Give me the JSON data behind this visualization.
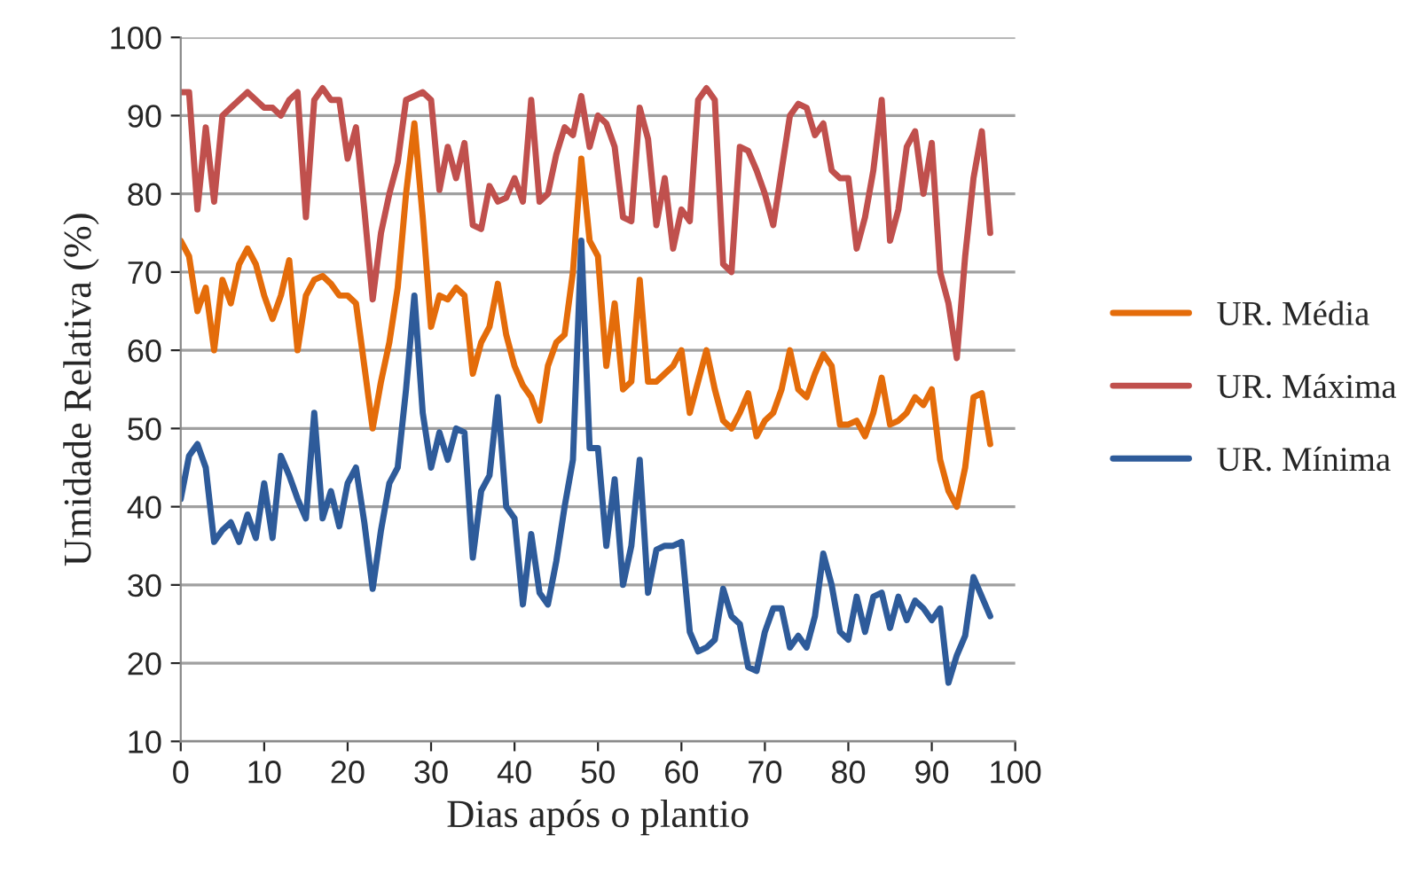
{
  "chart_data": {
    "type": "line",
    "xlabel": "Dias após o plantio",
    "ylabel": "Umidade Relativa (%)",
    "x": [
      0,
      1,
      2,
      3,
      4,
      5,
      6,
      7,
      8,
      9,
      10,
      11,
      12,
      13,
      14,
      15,
      16,
      17,
      18,
      19,
      20,
      21,
      22,
      23,
      24,
      25,
      26,
      27,
      28,
      29,
      30,
      31,
      32,
      33,
      34,
      35,
      36,
      37,
      38,
      39,
      40,
      41,
      42,
      43,
      44,
      45,
      46,
      47,
      48,
      49,
      50,
      51,
      52,
      53,
      54,
      55,
      56,
      57,
      58,
      59,
      60,
      61,
      62,
      63,
      64,
      65,
      66,
      67,
      68,
      69,
      70,
      71,
      72,
      73,
      74,
      75,
      76,
      77,
      78,
      79,
      80,
      81,
      82,
      83,
      84,
      85,
      86,
      87,
      88,
      89,
      90,
      91,
      92,
      93,
      94,
      95,
      96,
      97
    ],
    "series": [
      {
        "name": "UR. Média",
        "color": "#e46c0a",
        "values": [
          74,
          72,
          65,
          68,
          60,
          69,
          66,
          71,
          73,
          71,
          67,
          64,
          67,
          71.5,
          60,
          67,
          69,
          69.5,
          68.5,
          67,
          67,
          66,
          58,
          50,
          56,
          61,
          68,
          80,
          89,
          77,
          63,
          67,
          66.5,
          68,
          67,
          57,
          61,
          63,
          68.5,
          62,
          58,
          55.5,
          54,
          51,
          58,
          61,
          62,
          70,
          84.5,
          74,
          72,
          58,
          66,
          55,
          56,
          69,
          56,
          56,
          57,
          58,
          60,
          52,
          56,
          60,
          55,
          51,
          50,
          52,
          54.5,
          49,
          51,
          52,
          55,
          60,
          55,
          54,
          57,
          59.5,
          58,
          50.5,
          50.5,
          51,
          49,
          52,
          56.5,
          50.5,
          51,
          52,
          54,
          53,
          55,
          46,
          42,
          40,
          45,
          54,
          54.5,
          48
        ]
      },
      {
        "name": "UR. Máxima",
        "color": "#c0504d",
        "values": [
          93,
          93,
          78,
          88.5,
          79,
          90,
          91,
          92,
          93,
          92,
          91,
          91,
          90,
          92,
          93,
          77,
          92,
          93.5,
          92,
          92,
          84.5,
          88.5,
          78,
          66.5,
          75,
          80,
          84,
          92,
          92.5,
          93,
          92,
          80.5,
          86,
          82,
          86.5,
          76,
          75.5,
          81,
          79,
          79.5,
          82,
          79,
          92,
          79,
          80,
          85,
          88.5,
          87.5,
          92.5,
          86,
          90,
          89,
          86,
          77,
          76.5,
          91,
          87,
          76,
          82,
          73,
          78,
          76.5,
          92,
          93.5,
          92,
          71,
          70,
          86,
          85.5,
          83,
          80,
          76,
          83,
          90,
          91.5,
          91,
          87.5,
          89,
          83,
          82,
          82,
          73,
          77,
          83,
          92,
          74,
          78,
          86,
          88,
          80,
          86.5,
          70,
          66,
          59,
          72,
          82,
          88,
          75
        ]
      },
      {
        "name": "UR. Mínima",
        "color": "#2e5b9a",
        "values": [
          41,
          46.5,
          48,
          45,
          35.5,
          37,
          38,
          35.5,
          39,
          36,
          43,
          36,
          46.5,
          44,
          41,
          38.5,
          52,
          38.5,
          42,
          37.5,
          43,
          45,
          38,
          29.5,
          37,
          43,
          45,
          55,
          67,
          52,
          45,
          49.5,
          46,
          50,
          49.5,
          33.5,
          42,
          44,
          54,
          40,
          38.5,
          27.5,
          36.5,
          29,
          27.5,
          33,
          40,
          46,
          74,
          47.5,
          47.5,
          35,
          43.5,
          30,
          35,
          46,
          29,
          34.5,
          35,
          35,
          35.5,
          24,
          21.5,
          22,
          23,
          29.5,
          26,
          25,
          19.5,
          19,
          24,
          27,
          27,
          22,
          23.5,
          22,
          26,
          34,
          30,
          24,
          23,
          28.5,
          24,
          28.5,
          29,
          24.5,
          28.5,
          25.5,
          28,
          27,
          25.5,
          27,
          17.5,
          21,
          23.5,
          31,
          28.5,
          26
        ]
      }
    ],
    "xlim": [
      0,
      100
    ],
    "xticks": [
      0,
      10,
      20,
      30,
      40,
      50,
      60,
      70,
      80,
      90,
      100
    ],
    "ylim": [
      10,
      100
    ],
    "yticks": [
      10,
      20,
      30,
      40,
      50,
      60,
      70,
      80,
      90,
      100
    ],
    "grid": "y",
    "legend": "right",
    "line_style": "solid"
  }
}
